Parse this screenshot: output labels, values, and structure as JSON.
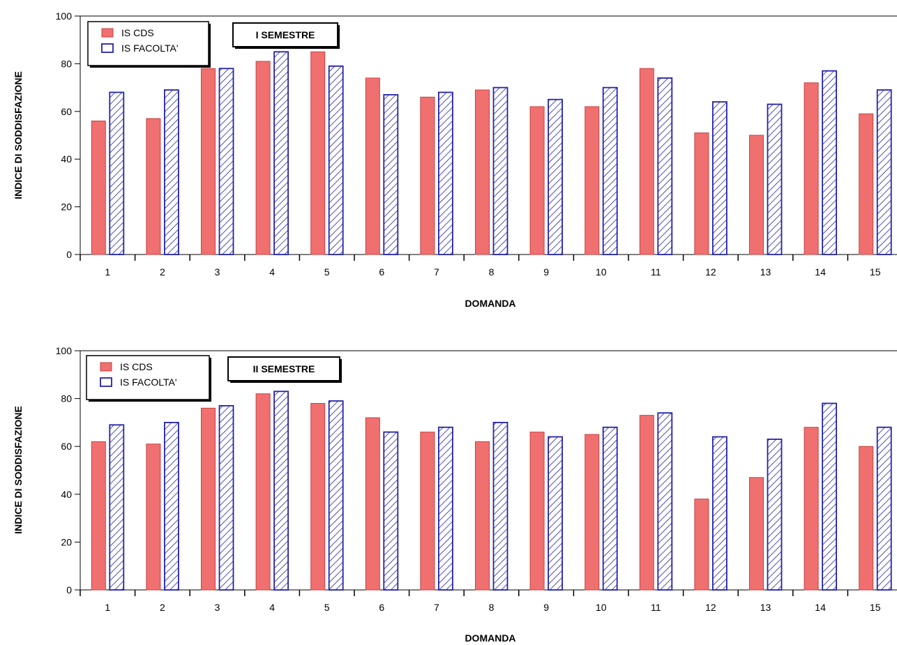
{
  "chart_data": [
    {
      "type": "bar",
      "semester_label": "I SEMESTRE",
      "xlabel": "DOMANDA",
      "ylabel": "INDICE DI SODDISFAZIONE",
      "ylim": [
        0,
        100
      ],
      "yticks": [
        0,
        20,
        40,
        60,
        80,
        100
      ],
      "categories": [
        "1",
        "2",
        "3",
        "4",
        "5",
        "6",
        "7",
        "8",
        "9",
        "10",
        "11",
        "12",
        "13",
        "14",
        "15"
      ],
      "legend_position": "top-left",
      "series": [
        {
          "name": "IS CDS",
          "color": "#f07070",
          "pattern": "solid",
          "values": [
            56,
            57,
            78,
            81,
            85,
            74,
            66,
            69,
            62,
            62,
            78,
            51,
            50,
            72,
            59
          ]
        },
        {
          "name": "IS FACOLTA'",
          "color": "#2222aa",
          "pattern": "hatched",
          "values": [
            68,
            69,
            78,
            85,
            79,
            67,
            68,
            70,
            65,
            70,
            74,
            64,
            63,
            77,
            69
          ]
        }
      ]
    },
    {
      "type": "bar",
      "semester_label": "II SEMESTRE",
      "xlabel": "DOMANDA",
      "ylabel": "INDICE DI SODDISFAZIONE",
      "ylim": [
        0,
        100
      ],
      "yticks": [
        0,
        20,
        40,
        60,
        80,
        100
      ],
      "categories": [
        "1",
        "2",
        "3",
        "4",
        "5",
        "6",
        "7",
        "8",
        "9",
        "10",
        "11",
        "12",
        "13",
        "14",
        "15"
      ],
      "legend_position": "top-left",
      "series": [
        {
          "name": "IS CDS",
          "color": "#f07070",
          "pattern": "solid",
          "values": [
            62,
            61,
            76,
            82,
            78,
            72,
            66,
            62,
            66,
            65,
            73,
            38,
            47,
            68,
            60
          ]
        },
        {
          "name": "IS FACOLTA'",
          "color": "#2222aa",
          "pattern": "hatched",
          "values": [
            69,
            70,
            77,
            83,
            79,
            66,
            68,
            70,
            64,
            68,
            74,
            64,
            63,
            78,
            68
          ]
        }
      ]
    }
  ]
}
